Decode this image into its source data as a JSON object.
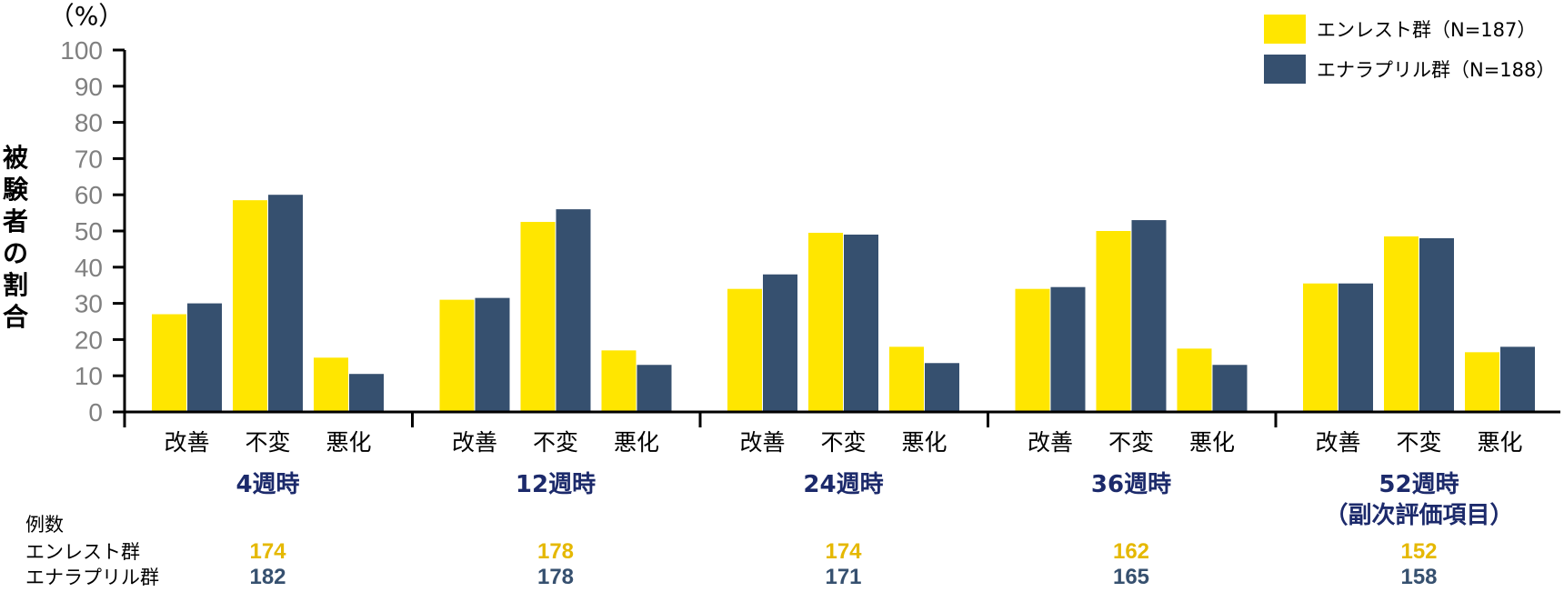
{
  "chart_data": {
    "type": "bar",
    "y_unit": "（%）",
    "ylabel": "被験者の割合",
    "ylim": [
      0,
      100
    ],
    "y_ticks": [
      "0",
      "10",
      "20",
      "30",
      "40",
      "50",
      "60",
      "70",
      "80",
      "90",
      "100"
    ],
    "categories": [
      "改善",
      "不変",
      "悪化"
    ],
    "groups": [
      {
        "label": "4週時",
        "sublabel": ""
      },
      {
        "label": "12週時",
        "sublabel": ""
      },
      {
        "label": "24週時",
        "sublabel": ""
      },
      {
        "label": "36週時",
        "sublabel": ""
      },
      {
        "label": "52週時",
        "sublabel": "（副次評価項目）"
      }
    ],
    "series": [
      {
        "name": "エンレスト群（N=187）",
        "color": "#FFE600",
        "values": [
          [
            27,
            58.5,
            15
          ],
          [
            31,
            52.5,
            17
          ],
          [
            34,
            49.5,
            18
          ],
          [
            34,
            50,
            17.5
          ],
          [
            35.5,
            48.5,
            16.5
          ]
        ]
      },
      {
        "name": "エナラプリル群（N=188）",
        "color": "#36506F",
        "values": [
          [
            30,
            60,
            10.5
          ],
          [
            31.5,
            56,
            13
          ],
          [
            38,
            49,
            13.5
          ],
          [
            34.5,
            53,
            13
          ],
          [
            35.5,
            48,
            18
          ]
        ]
      }
    ],
    "legend_position": "top-right",
    "grid": false,
    "n_table": {
      "title": "例数",
      "rows": [
        {
          "label": "エンレスト群",
          "color": "#E5B800",
          "values": [
            "174",
            "178",
            "174",
            "162",
            "152"
          ]
        },
        {
          "label": "エナラプリル群",
          "color": "#36506F",
          "values": [
            "182",
            "178",
            "171",
            "165",
            "158"
          ]
        }
      ]
    }
  }
}
